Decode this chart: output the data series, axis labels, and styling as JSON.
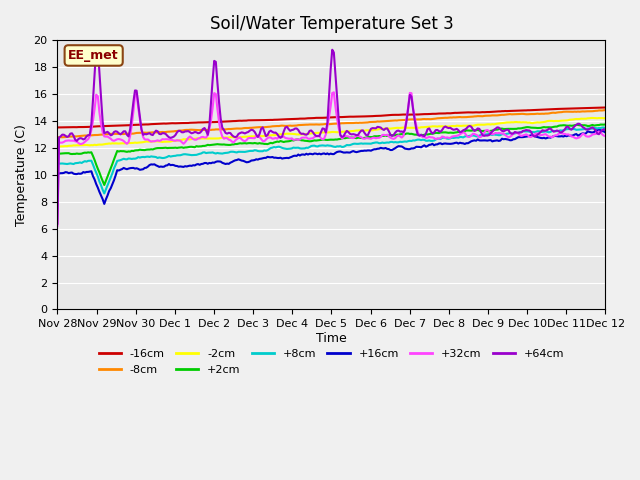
{
  "title": "Soil/Water Temperature Set 3",
  "xlabel": "Time",
  "ylabel": "Temperature (C)",
  "ylim": [
    0,
    20
  ],
  "yticks": [
    0,
    2,
    4,
    6,
    8,
    10,
    12,
    14,
    16,
    18,
    20
  ],
  "background_color": "#e8e8e8",
  "plot_bg_color": "#e8e8e8",
  "annotation_text": "EE_met",
  "annotation_box_color": "#ffffcc",
  "annotation_border_color": "#8B4513",
  "series": {
    "-16cm": {
      "color": "#cc0000",
      "lw": 1.5
    },
    "-8cm": {
      "color": "#ff8800",
      "lw": 1.5
    },
    "-2cm": {
      "color": "#ffff00",
      "lw": 1.5
    },
    "+2cm": {
      "color": "#00cc00",
      "lw": 1.5
    },
    "+8cm": {
      "color": "#00cccc",
      "lw": 1.5
    },
    "+16cm": {
      "color": "#0000cc",
      "lw": 1.5
    },
    "+32cm": {
      "color": "#ff44ff",
      "lw": 1.5
    },
    "+64cm": {
      "color": "#9900cc",
      "lw": 1.5
    }
  },
  "xtick_labels": [
    "Nov 28",
    "Nov 29",
    "Nov 30",
    "Dec 1",
    "Dec 2",
    "Dec 3",
    "Dec 4",
    "Dec 5",
    "Dec 6",
    "Dec 7",
    "Dec 8",
    "Dec 9",
    "Dec 10",
    "Dec 11",
    "Dec 12"
  ],
  "n_points": 340
}
